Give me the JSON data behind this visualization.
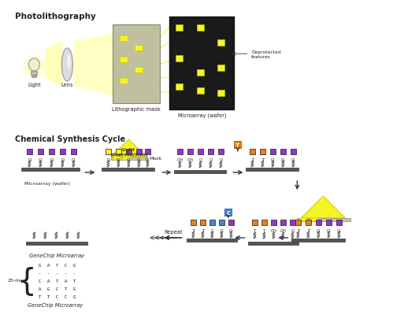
{
  "bg_color": "#ffffff",
  "purple": "#9b30d0",
  "orange": "#e8821e",
  "blue": "#4488cc",
  "yellow": "#f5f526",
  "yellow2": "#f0f060",
  "gray_mask": "#c8c8a0",
  "dark_wafer": "#1a1a1a",
  "surface_color": "#666666",
  "text_color": "#222222",
  "title_top": "Photolithography",
  "title_mid": "Chemical Synthesis Cycle",
  "label_lens": "Lens",
  "label_light": "Light",
  "label_mask": "Lithographic mask",
  "label_wafer": "Microarray (wafer)",
  "label_deprotected": "Deprotected\nfeatures",
  "label_genechip": "GeneChip Microarray",
  "label_microarray": "Microarray (wafer)",
  "label_repeat": "Repeat",
  "label_25mer": "25-mer"
}
